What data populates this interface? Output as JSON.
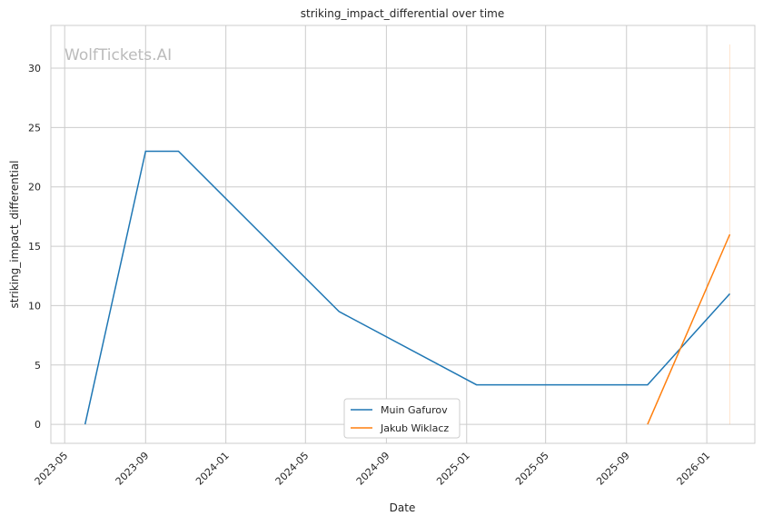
{
  "chart_data": {
    "type": "line",
    "title": "striking_impact_differential over time",
    "xlabel": "Date",
    "ylabel": "striking_impact_differential",
    "watermark": "WolfTickets.AI",
    "xlim": [
      "2023-04-10",
      "2026-03-15"
    ],
    "ylim": [
      -1.6,
      33.6
    ],
    "x_ticks": [
      "2023-05",
      "2023-09",
      "2024-01",
      "2024-05",
      "2024-09",
      "2025-01",
      "2025-05",
      "2025-09",
      "2026-01"
    ],
    "y_ticks": [
      0,
      5,
      10,
      15,
      20,
      25,
      30
    ],
    "grid": true,
    "legend_position": "bottom-center",
    "series": [
      {
        "name": "Muin Gafurov",
        "color": "#1f77b4",
        "x": [
          "2023-06-01",
          "2023-09-01",
          "2023-10-21",
          "2024-06-21",
          "2025-01-16",
          "2025-10-03",
          "2026-02-05"
        ],
        "y": [
          0,
          23,
          23,
          9.5,
          3.33,
          3.33,
          11
        ]
      },
      {
        "name": "Jakub Wiklacz",
        "color": "#ff7f0e",
        "x": [
          "2025-10-03",
          "2026-02-05"
        ],
        "y": [
          0,
          16
        ]
      }
    ],
    "reference_line": {
      "x": "2026-02-05",
      "y": [
        0,
        32
      ],
      "color": "#ff7f0e"
    }
  }
}
